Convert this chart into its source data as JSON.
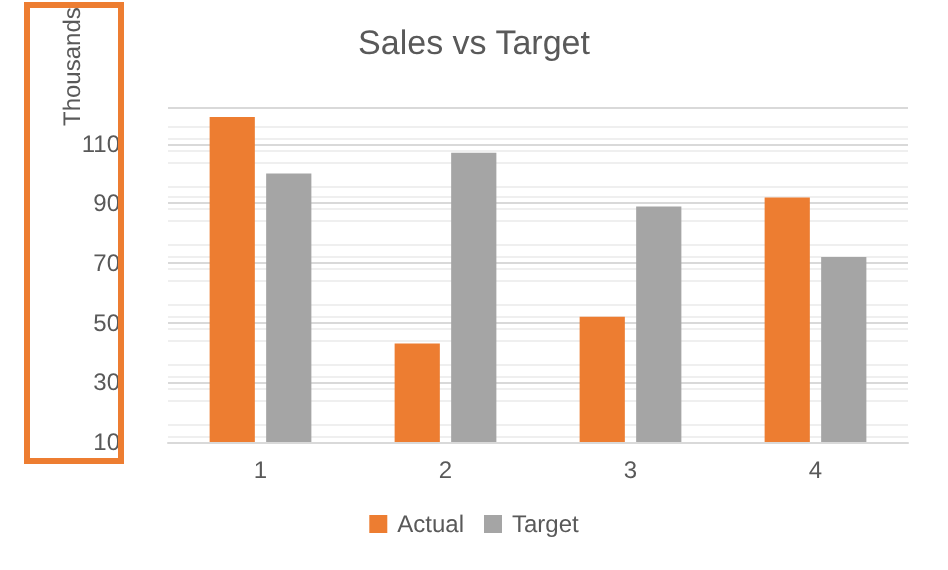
{
  "chart_data": {
    "type": "bar",
    "title": "Sales vs Target",
    "ylabel": "Thousands",
    "categories": [
      "1",
      "2",
      "3",
      "4"
    ],
    "series": [
      {
        "name": "Actual",
        "color": "#ed7d31",
        "values": [
          119,
          43,
          52,
          92
        ]
      },
      {
        "name": "Target",
        "color": "#a5a5a5",
        "values": [
          100,
          107,
          89,
          72
        ]
      }
    ],
    "ylim": [
      10,
      122
    ],
    "yticks": [
      10,
      30,
      50,
      70,
      90,
      110
    ],
    "grid": "y",
    "legend": "bottom"
  }
}
